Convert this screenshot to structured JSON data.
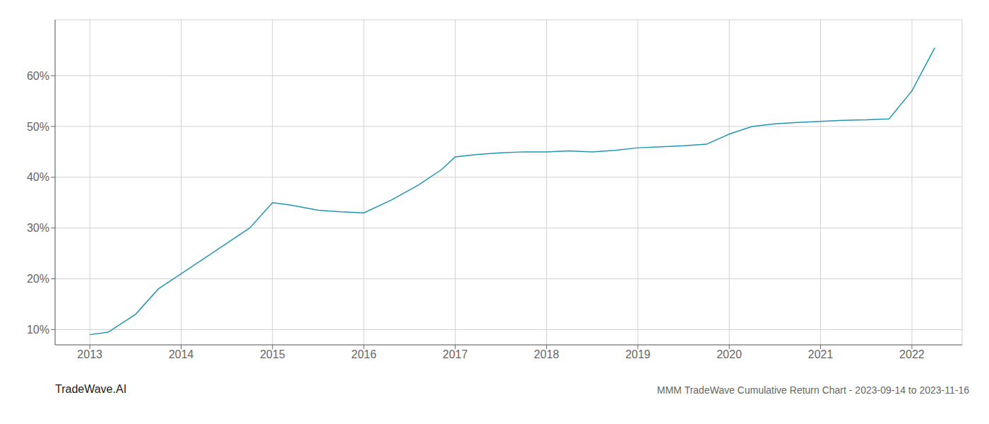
{
  "chart_data": {
    "type": "line",
    "title": "MMM TradeWave Cumulative Return Chart - 2023-09-14 to 2023-11-16",
    "annotations": [
      "TradeWave.AI"
    ],
    "x": [
      2013.0,
      2013.2,
      2013.5,
      2013.75,
      2014.0,
      2014.25,
      2014.75,
      2015.0,
      2015.2,
      2015.5,
      2015.75,
      2016.0,
      2016.3,
      2016.6,
      2016.85,
      2017.0,
      2017.25,
      2017.5,
      2017.75,
      2018.0,
      2018.25,
      2018.5,
      2018.75,
      2019.0,
      2019.25,
      2019.5,
      2019.75,
      2020.0,
      2020.25,
      2020.5,
      2020.75,
      2021.0,
      2021.25,
      2021.5,
      2021.75,
      2022.0,
      2022.25
    ],
    "values": [
      9.0,
      9.5,
      13.0,
      18.0,
      21.0,
      24.0,
      30.0,
      35.0,
      34.5,
      33.5,
      33.2,
      33.0,
      35.5,
      38.5,
      41.5,
      44.0,
      44.5,
      44.8,
      45.0,
      45.0,
      45.2,
      45.0,
      45.3,
      45.8,
      46.0,
      46.2,
      46.5,
      48.5,
      50.0,
      50.5,
      50.8,
      51.0,
      51.2,
      51.3,
      51.5,
      57.0,
      65.5
    ],
    "color": "#2196b0",
    "xlim": [
      2012.62,
      2022.55
    ],
    "ylim": [
      7.0,
      71.0
    ],
    "xticks": [
      2013,
      2014,
      2015,
      2016,
      2017,
      2018,
      2019,
      2020,
      2021,
      2022
    ],
    "yticks": [
      {
        "value": 10,
        "label": "10%"
      },
      {
        "value": 20,
        "label": "20%"
      },
      {
        "value": 30,
        "label": "30%"
      },
      {
        "value": 40,
        "label": "40%"
      },
      {
        "value": 50,
        "label": "50%"
      },
      {
        "value": 60,
        "label": "60%"
      }
    ],
    "grid": true
  }
}
